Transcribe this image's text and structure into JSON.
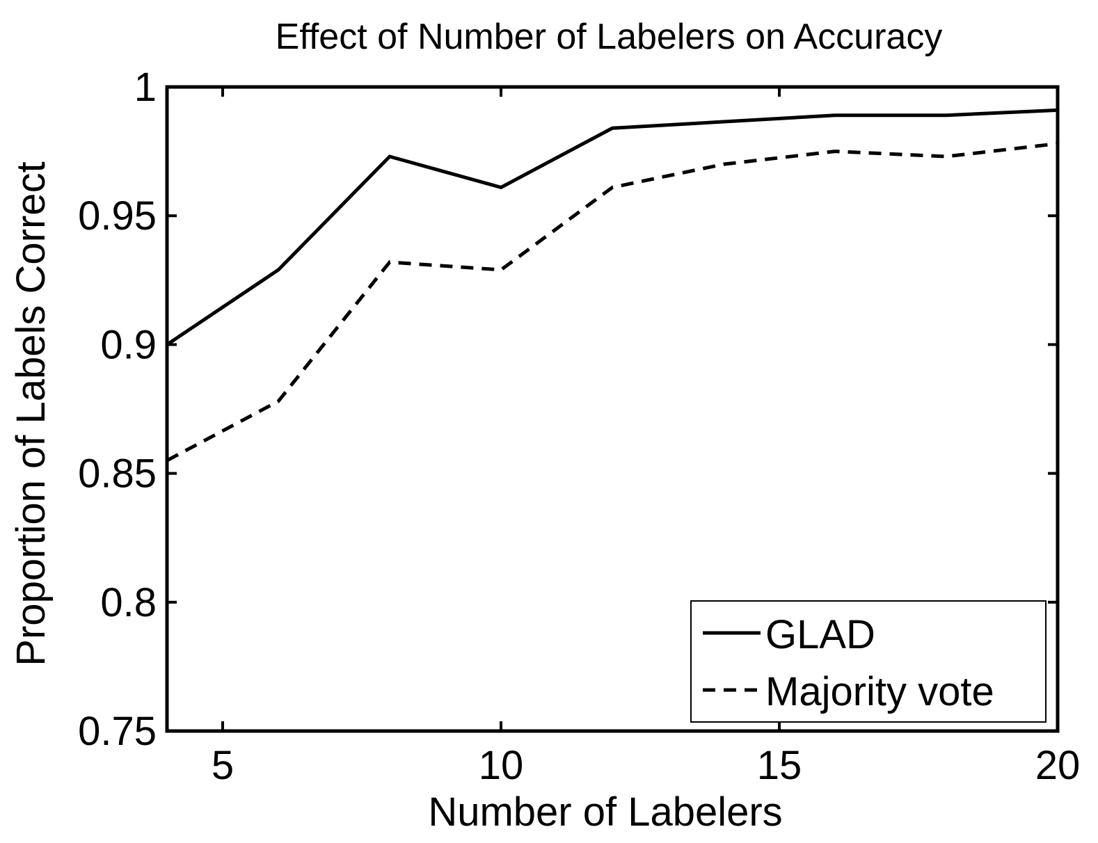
{
  "chart_data": {
    "type": "line",
    "title": "Effect of Number of Labelers on Accuracy",
    "xlabel": "Number of Labelers",
    "ylabel": "Proportion of Labels Correct",
    "xlim": [
      4,
      20
    ],
    "ylim": [
      0.75,
      1
    ],
    "xticks": [
      5,
      10,
      15,
      20
    ],
    "xtick_labels": [
      "5",
      "10",
      "15",
      "20"
    ],
    "yticks": [
      0.75,
      0.8,
      0.85,
      0.9,
      0.95,
      1
    ],
    "ytick_labels": [
      "0.75",
      "0.8",
      "0.85",
      "0.9",
      "0.95",
      "1"
    ],
    "grid": false,
    "legend_position": "bottom-right",
    "series": [
      {
        "name": "GLAD",
        "line_style": "solid",
        "color": "#000000",
        "x": [
          4,
          6,
          8,
          10,
          12,
          16,
          18,
          20
        ],
        "y": [
          0.9,
          0.929,
          0.973,
          0.961,
          0.984,
          0.989,
          0.989,
          0.991
        ]
      },
      {
        "name": "Majority vote",
        "line_style": "dashed",
        "color": "#000000",
        "x": [
          4,
          6,
          8,
          10,
          12,
          14,
          16,
          18,
          20
        ],
        "y": [
          0.855,
          0.878,
          0.932,
          0.929,
          0.961,
          0.97,
          0.975,
          0.973,
          0.978
        ]
      }
    ]
  }
}
